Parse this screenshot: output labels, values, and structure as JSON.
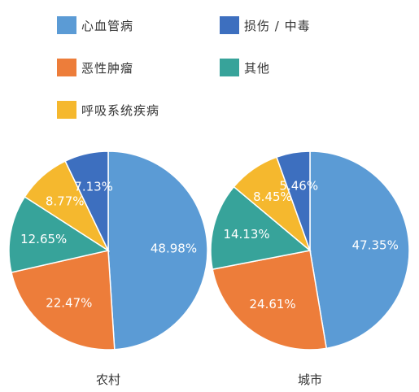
{
  "legend": [
    {
      "label": "心血管病",
      "color": "#5b9bd5"
    },
    {
      "label": "损伤 / 中毒",
      "color": "#3d6fbf"
    },
    {
      "label": "恶性肿瘤",
      "color": "#ed7d3a"
    },
    {
      "label": "其他",
      "color": "#37a39a"
    },
    {
      "label": "呼吸系统疾病",
      "color": "#f5b82e"
    }
  ],
  "chart_data": [
    {
      "type": "pie",
      "title": "农村",
      "categories": [
        "心血管病",
        "恶性肿瘤",
        "其他",
        "呼吸系统疾病",
        "损伤 / 中毒"
      ],
      "values": [
        48.98,
        22.47,
        12.65,
        8.77,
        7.13
      ],
      "labels": [
        "48.98%",
        "22.47%",
        "12.65%",
        "8.77%",
        "7.13%"
      ],
      "colors": [
        "#5b9bd5",
        "#ed7d3a",
        "#37a39a",
        "#f5b82e",
        "#3d6fbf"
      ]
    },
    {
      "type": "pie",
      "title": "城市",
      "categories": [
        "心血管病",
        "恶性肿瘤",
        "其他",
        "呼吸系统疾病",
        "损伤 / 中毒"
      ],
      "values": [
        47.35,
        24.61,
        14.13,
        8.45,
        5.46
      ],
      "labels": [
        "47.35%",
        "24.61%",
        "14.13%",
        "8.45%",
        "5.46%"
      ],
      "colors": [
        "#5b9bd5",
        "#ed7d3a",
        "#37a39a",
        "#f5b82e",
        "#3d6fbf"
      ]
    }
  ]
}
